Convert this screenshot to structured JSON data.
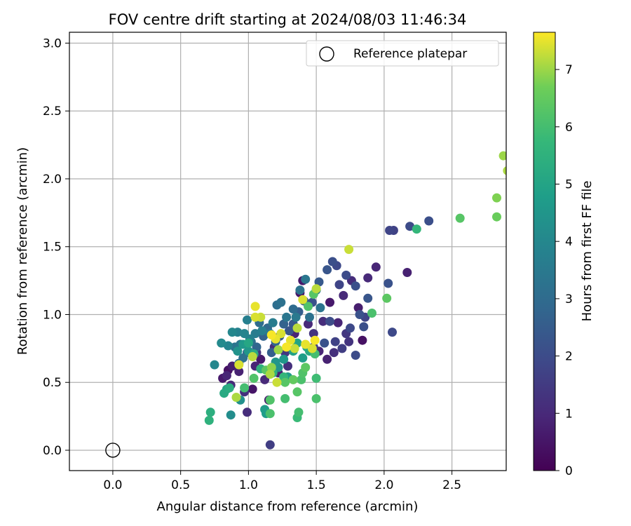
{
  "chart_data": {
    "type": "scatter",
    "title": "FOV centre drift starting at 2024/08/03 11:46:34",
    "xlabel": "Angular distance from reference (arcmin)",
    "ylabel": "Rotation from reference (arcmin)",
    "xlim": [
      -0.32,
      2.9
    ],
    "ylim": [
      -0.15,
      3.08
    ],
    "xticks": [
      0.0,
      0.5,
      1.0,
      1.5,
      2.0,
      2.5
    ],
    "yticks": [
      0.0,
      0.5,
      1.0,
      1.5,
      2.0,
      2.5,
      3.0
    ],
    "xtick_labels": [
      "0.0",
      "0.5",
      "1.0",
      "1.5",
      "2.0",
      "2.5"
    ],
    "ytick_labels": [
      "0.0",
      "0.5",
      "1.0",
      "1.5",
      "2.0",
      "2.5",
      "3.0"
    ],
    "grid": true,
    "legend": {
      "placement": "top-right",
      "entries": [
        "Reference platepar"
      ]
    },
    "reference_point": {
      "name": "Reference platepar",
      "x": 0.0,
      "y": 0.0
    },
    "colorbar": {
      "label": "Hours from first FF file",
      "min": 0,
      "max": 7.65,
      "ticks": [
        0,
        1,
        2,
        3,
        4,
        5,
        6,
        7
      ],
      "tick_labels": [
        "0",
        "1",
        "2",
        "3",
        "4",
        "5",
        "6",
        "7"
      ],
      "colormap": "viridis"
    },
    "points": [
      [
        0.81,
        0.53,
        0.6
      ],
      [
        0.84,
        0.55,
        0.9
      ],
      [
        0.85,
        0.59,
        0.4
      ],
      [
        0.88,
        0.62,
        0.7
      ],
      [
        0.87,
        0.48,
        1.0
      ],
      [
        0.93,
        0.58,
        0.8
      ],
      [
        0.97,
        0.43,
        1.2
      ],
      [
        0.99,
        0.28,
        1.1
      ],
      [
        1.03,
        0.45,
        0.5
      ],
      [
        1.05,
        0.62,
        0.9
      ],
      [
        1.06,
        0.72,
        1.3
      ],
      [
        1.09,
        0.67,
        0.6
      ],
      [
        1.12,
        0.52,
        1.0
      ],
      [
        1.15,
        0.37,
        0.7
      ],
      [
        1.16,
        0.04,
        1.6
      ],
      [
        1.19,
        0.76,
        1.1
      ],
      [
        1.22,
        0.57,
        0.8
      ],
      [
        1.27,
        0.72,
        1.4
      ],
      [
        1.29,
        0.62,
        1.2
      ],
      [
        1.34,
        0.86,
        0.9
      ],
      [
        1.38,
        1.16,
        0.5
      ],
      [
        1.4,
        1.25,
        0.6
      ],
      [
        1.44,
        0.93,
        1.0
      ],
      [
        1.48,
        0.86,
        1.3
      ],
      [
        1.55,
        0.95,
        1.1
      ],
      [
        1.58,
        0.67,
        0.8
      ],
      [
        1.6,
        1.09,
        0.6
      ],
      [
        1.63,
        0.72,
        1.2
      ],
      [
        1.66,
        0.94,
        0.9
      ],
      [
        1.7,
        1.14,
        1.0
      ],
      [
        1.72,
        0.86,
        1.4
      ],
      [
        1.74,
        0.8,
        1.3
      ],
      [
        1.76,
        1.25,
        1.1
      ],
      [
        1.81,
        1.05,
        0.7
      ],
      [
        1.84,
        0.81,
        0.4
      ],
      [
        1.88,
        1.27,
        1.0
      ],
      [
        1.94,
        1.35,
        0.9
      ],
      [
        2.17,
        1.31,
        0.8
      ],
      [
        1.48,
        0.76,
        1.5
      ],
      [
        1.52,
        0.73,
        0.9
      ],
      [
        1.64,
        0.8,
        1.7
      ],
      [
        1.69,
        0.75,
        1.6
      ],
      [
        1.67,
        1.22,
        1.8
      ],
      [
        1.72,
        1.29,
        2.0
      ],
      [
        1.75,
        0.9,
        1.9
      ],
      [
        1.79,
        1.21,
        2.1
      ],
      [
        1.82,
        1.0,
        2.2
      ],
      [
        1.86,
        0.98,
        1.8
      ],
      [
        1.88,
        1.12,
        2.3
      ],
      [
        1.85,
        0.91,
        2.1
      ],
      [
        1.79,
        0.7,
        2.0
      ],
      [
        2.03,
        1.23,
        2.2
      ],
      [
        2.06,
        0.87,
        1.9
      ],
      [
        2.04,
        1.62,
        1.8
      ],
      [
        2.07,
        1.62,
        1.7
      ],
      [
        2.19,
        1.65,
        2.0
      ],
      [
        2.33,
        1.69,
        2.1
      ],
      [
        1.56,
        0.79,
        2.2
      ],
      [
        1.6,
        0.95,
        2.0
      ],
      [
        1.58,
        1.33,
        2.3
      ],
      [
        1.65,
        1.36,
        1.9
      ],
      [
        1.62,
        1.39,
        2.1
      ],
      [
        1.52,
        1.24,
        2.4
      ],
      [
        1.47,
        1.09,
        2.2
      ],
      [
        1.41,
        1.1,
        2.5
      ],
      [
        1.37,
        1.02,
        2.6
      ],
      [
        1.33,
        0.93,
        2.4
      ],
      [
        1.3,
        0.88,
        2.3
      ],
      [
        1.26,
        0.93,
        2.7
      ],
      [
        1.23,
        0.84,
        2.5
      ],
      [
        1.2,
        0.8,
        2.8
      ],
      [
        1.17,
        0.72,
        2.6
      ],
      [
        1.14,
        0.9,
        2.9
      ],
      [
        1.11,
        0.84,
        2.7
      ],
      [
        1.08,
        0.94,
        3.0
      ],
      [
        1.06,
        0.76,
        2.8
      ],
      [
        1.02,
        0.8,
        3.1
      ],
      [
        0.99,
        0.72,
        2.9
      ],
      [
        0.96,
        0.68,
        3.2
      ],
      [
        0.93,
        0.64,
        3.0
      ],
      [
        0.9,
        0.76,
        3.3
      ],
      [
        0.94,
        0.78,
        3.4
      ],
      [
        1.21,
        1.07,
        3.1
      ],
      [
        1.24,
        1.09,
        3.2
      ],
      [
        1.33,
        1.04,
        3.0
      ],
      [
        1.38,
        1.18,
        3.3
      ],
      [
        1.42,
        1.26,
        3.4
      ],
      [
        1.45,
        0.98,
        3.2
      ],
      [
        1.5,
        1.18,
        3.5
      ],
      [
        1.53,
        1.05,
        3.3
      ],
      [
        1.35,
        0.98,
        3.5
      ],
      [
        1.28,
        0.98,
        3.4
      ],
      [
        1.18,
        0.94,
        3.6
      ],
      [
        1.16,
        0.86,
        3.5
      ],
      [
        1.1,
        0.88,
        3.7
      ],
      [
        1.05,
        0.86,
        3.6
      ],
      [
        1.01,
        0.82,
        3.8
      ],
      [
        0.99,
        0.96,
        3.7
      ],
      [
        0.97,
        0.86,
        3.9
      ],
      [
        0.92,
        0.87,
        3.8
      ],
      [
        0.88,
        0.87,
        4.0
      ],
      [
        0.85,
        0.77,
        3.9
      ],
      [
        0.8,
        0.79,
        4.1
      ],
      [
        0.75,
        0.63,
        4.0
      ],
      [
        0.87,
        0.26,
        4.2
      ],
      [
        0.94,
        0.37,
        4.3
      ],
      [
        0.92,
        0.73,
        4.4
      ],
      [
        1.0,
        0.73,
        4.5
      ],
      [
        0.96,
        0.78,
        4.6
      ],
      [
        1.12,
        0.3,
        4.7
      ],
      [
        1.13,
        0.27,
        4.8
      ],
      [
        1.2,
        0.65,
        4.5
      ],
      [
        1.22,
        0.61,
        4.4
      ],
      [
        1.26,
        0.67,
        4.6
      ],
      [
        1.29,
        0.54,
        4.7
      ],
      [
        1.33,
        0.73,
        4.9
      ],
      [
        1.36,
        0.79,
        5.0
      ],
      [
        1.4,
        0.68,
        4.8
      ],
      [
        1.43,
        0.76,
        5.1
      ],
      [
        1.45,
        0.73,
        5.2
      ],
      [
        0.84,
        0.45,
        5.0
      ],
      [
        0.86,
        0.46,
        5.3
      ],
      [
        0.82,
        0.42,
        5.2
      ],
      [
        0.72,
        0.28,
        5.4
      ],
      [
        0.71,
        0.22,
        5.5
      ],
      [
        1.0,
        0.79,
        5.1
      ],
      [
        1.04,
        0.71,
        5.3
      ],
      [
        1.09,
        0.6,
        5.5
      ],
      [
        1.18,
        0.57,
        5.6
      ],
      [
        1.26,
        0.54,
        5.7
      ],
      [
        1.36,
        0.24,
        5.8
      ],
      [
        1.37,
        0.28,
        6.0
      ],
      [
        1.16,
        0.27,
        6.1
      ],
      [
        1.16,
        0.37,
        6.2
      ],
      [
        1.27,
        0.38,
        6.0
      ],
      [
        1.36,
        0.43,
        6.3
      ],
      [
        1.39,
        0.52,
        6.1
      ],
      [
        1.4,
        0.57,
        6.2
      ],
      [
        1.42,
        0.61,
        6.4
      ],
      [
        1.49,
        0.71,
        6.0
      ],
      [
        1.5,
        0.53,
        5.9
      ],
      [
        1.5,
        0.38,
        6.1
      ],
      [
        1.27,
        0.5,
        6.3
      ],
      [
        1.33,
        0.52,
        6.5
      ],
      [
        1.13,
        0.59,
        6.4
      ],
      [
        1.04,
        0.53,
        6.2
      ],
      [
        0.97,
        0.46,
        6.0
      ],
      [
        1.44,
        1.06,
        6.2
      ],
      [
        1.48,
        1.15,
        6.3
      ],
      [
        1.91,
        1.01,
        6.1
      ],
      [
        2.02,
        1.12,
        6.4
      ],
      [
        2.24,
        1.63,
        5.7
      ],
      [
        2.56,
        1.71,
        6.3
      ],
      [
        2.83,
        1.72,
        6.6
      ],
      [
        2.83,
        1.86,
        6.8
      ],
      [
        2.88,
        2.17,
        7.0
      ],
      [
        2.91,
        2.06,
        7.1
      ],
      [
        1.74,
        1.48,
        7.3
      ],
      [
        1.5,
        1.19,
        7.2
      ],
      [
        1.4,
        1.11,
        7.4
      ],
      [
        1.05,
        1.06,
        7.5
      ],
      [
        1.05,
        0.98,
        7.4
      ],
      [
        1.09,
        0.98,
        7.3
      ],
      [
        1.17,
        0.85,
        7.6
      ],
      [
        1.2,
        0.82,
        7.5
      ],
      [
        1.24,
        0.86,
        7.4
      ],
      [
        1.28,
        0.76,
        7.6
      ],
      [
        1.31,
        0.81,
        7.5
      ],
      [
        1.34,
        0.75,
        7.3
      ],
      [
        1.36,
        0.9,
        7.2
      ],
      [
        1.42,
        0.78,
        7.5
      ],
      [
        1.47,
        0.75,
        7.4
      ],
      [
        1.49,
        0.81,
        7.6
      ],
      [
        1.21,
        0.5,
        7.3
      ],
      [
        1.16,
        0.56,
        7.1
      ],
      [
        1.03,
        0.69,
        7.2
      ],
      [
        0.93,
        0.63,
        7.4
      ],
      [
        0.91,
        0.39,
        7.1
      ],
      [
        1.17,
        0.61,
        6.9
      ],
      [
        1.22,
        0.74,
        7.0
      ]
    ]
  }
}
